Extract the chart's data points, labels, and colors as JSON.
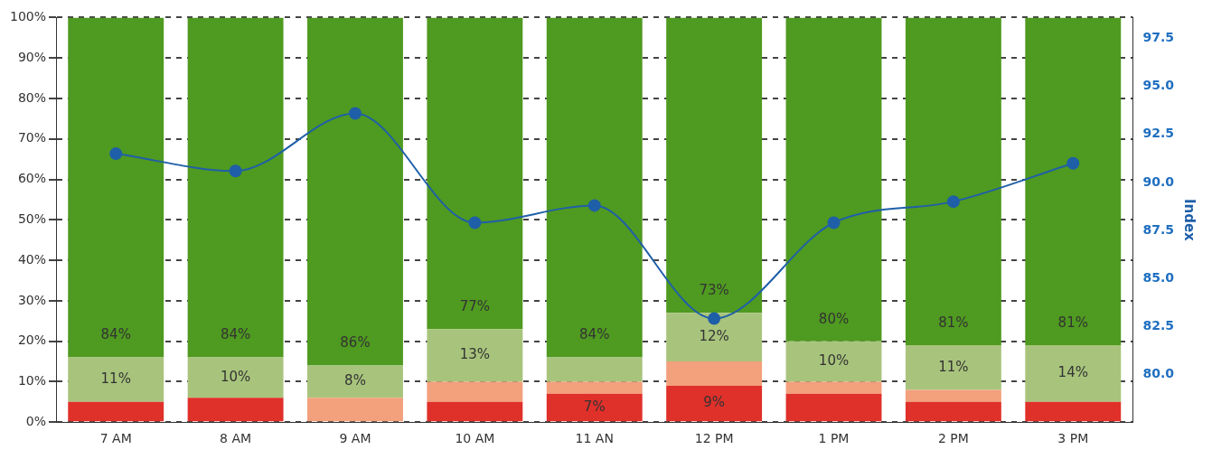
{
  "chart_data": {
    "type": "bar",
    "stacked": true,
    "categories": [
      "7 AM",
      "8 AM",
      "9 AM",
      "10 AM",
      "11 AN",
      "12 PM",
      "1 PM",
      "2 PM",
      "3 PM"
    ],
    "y2label": "Index",
    "ylim": [
      0,
      100
    ],
    "yticks": [
      {
        "value": 0,
        "label": "0%"
      },
      {
        "value": 10,
        "label": "10%"
      },
      {
        "value": 20,
        "label": "20%"
      },
      {
        "value": 30,
        "label": "30%"
      },
      {
        "value": 40,
        "label": "40%"
      },
      {
        "value": 50,
        "label": "50%"
      },
      {
        "value": 60,
        "label": "60%"
      },
      {
        "value": 70,
        "label": "70%"
      },
      {
        "value": 80,
        "label": "80%"
      },
      {
        "value": 90,
        "label": "90%"
      },
      {
        "value": 100,
        "label": "100%"
      }
    ],
    "y2lim": [
      77.5,
      98.6
    ],
    "y2ticks": [
      {
        "value": 80,
        "label": "80.0"
      },
      {
        "value": 82.5,
        "label": "82.5"
      },
      {
        "value": 85,
        "label": "85.0"
      },
      {
        "value": 87.5,
        "label": "87.5"
      },
      {
        "value": 90,
        "label": "90.0"
      },
      {
        "value": 92.5,
        "label": "92.5"
      },
      {
        "value": 95,
        "label": "95.0"
      },
      {
        "value": 97.5,
        "label": "97.5"
      }
    ],
    "grid": "y",
    "legend": false,
    "series": [
      {
        "color": "#e0302a",
        "values": [
          5,
          6,
          0,
          5,
          7,
          9,
          7,
          5,
          5
        ],
        "value_labels": [
          null,
          null,
          null,
          null,
          "7%",
          "9%",
          null,
          null,
          null
        ]
      },
      {
        "color": "#f3a07c",
        "values": [
          0,
          0,
          6,
          5,
          3,
          6,
          3,
          3,
          0
        ],
        "value_labels": [
          null,
          null,
          null,
          null,
          null,
          null,
          null,
          null,
          null
        ]
      },
      {
        "color": "#a8c47c",
        "values": [
          11,
          10,
          8,
          13,
          6,
          12,
          10,
          11,
          14
        ],
        "value_labels": [
          "11%",
          "10%",
          "8%",
          "13%",
          null,
          "12%",
          "10%",
          "11%",
          "14%"
        ]
      },
      {
        "color": "#4f9a20",
        "values": [
          84,
          84,
          86,
          77,
          84,
          73,
          80,
          81,
          81
        ],
        "value_labels": [
          "84%",
          "84%",
          "86%",
          "77%",
          "84%",
          "73%",
          "80%",
          "81%",
          "81%"
        ]
      },
      {
        "type": "line",
        "axis": "y2",
        "color": "#1f5fa8",
        "marker": "circle",
        "values": [
          91.5,
          90.6,
          93.6,
          87.9,
          88.8,
          82.9,
          87.9,
          89.0,
          91.0
        ]
      }
    ]
  }
}
